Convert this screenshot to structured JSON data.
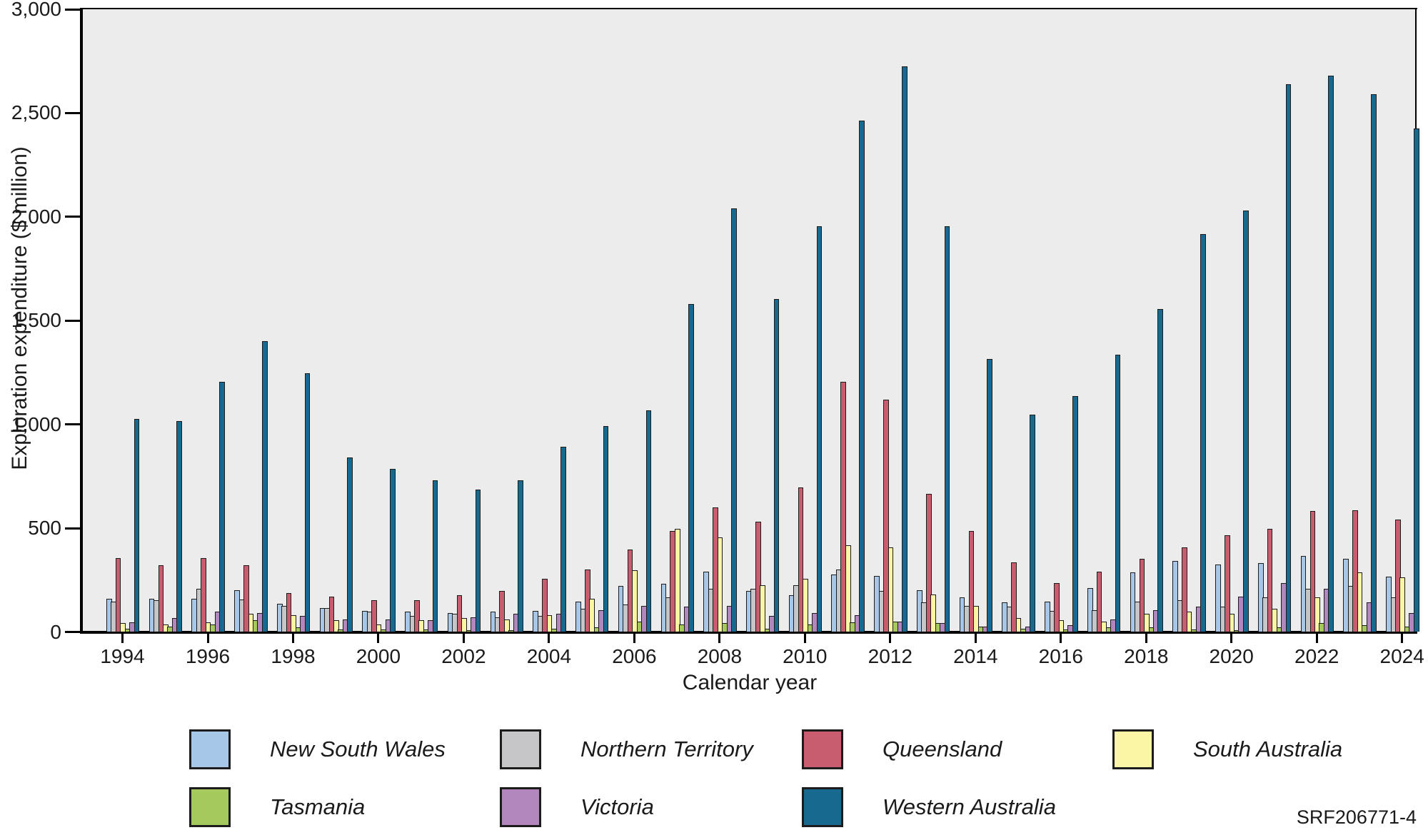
{
  "figure_code": "SRF206771-4",
  "colors": {
    "plot_background": "#ECECEC",
    "axis": "#000000",
    "bar_outline": "#1c1c1c"
  },
  "chart_data": {
    "type": "bar",
    "title": "",
    "xlabel": "Calendar year",
    "ylabel": "Exploration expenditure ($ million)",
    "ylim": [
      0,
      3000
    ],
    "grid": false,
    "legend_position": "bottom",
    "ytick_values": [
      0,
      500,
      1000,
      1500,
      2000,
      2500,
      3000
    ],
    "ytick_labels": [
      "0",
      "500",
      "1,000",
      "1,500",
      "2,000",
      "2,500",
      "3,000"
    ],
    "x": [
      1994,
      1995,
      1996,
      1997,
      1998,
      1999,
      2000,
      2001,
      2002,
      2003,
      2004,
      2005,
      2006,
      2007,
      2008,
      2009,
      2010,
      2011,
      2012,
      2013,
      2014,
      2015,
      2016,
      2017,
      2018,
      2019,
      2020,
      2021,
      2022,
      2023,
      2024
    ],
    "xtick_labels": [
      "1994",
      "1996",
      "1998",
      "2000",
      "2002",
      "2004",
      "2006",
      "2008",
      "2010",
      "2012",
      "2014",
      "2016",
      "2018",
      "2020",
      "2022",
      "2024"
    ],
    "series": [
      {
        "name": "New South Wales",
        "color": "#A6C7E8",
        "values": [
          160,
          160,
          160,
          200,
          135,
          115,
          100,
          95,
          90,
          95,
          100,
          145,
          220,
          230,
          290,
          195,
          175,
          275,
          270,
          200,
          165,
          140,
          145,
          210,
          285,
          340,
          325,
          330,
          365,
          350,
          265
        ]
      },
      {
        "name": "Northern Territory",
        "color": "#C6C6C8",
        "values": [
          145,
          150,
          205,
          155,
          125,
          115,
          95,
          75,
          85,
          70,
          75,
          110,
          130,
          165,
          205,
          205,
          225,
          300,
          195,
          140,
          125,
          120,
          100,
          105,
          145,
          150,
          120,
          165,
          205,
          220,
          165
        ]
      },
      {
        "name": "Queensland",
        "color": "#C75D6F",
        "values": [
          355,
          320,
          355,
          320,
          185,
          170,
          150,
          150,
          175,
          195,
          255,
          300,
          395,
          485,
          600,
          530,
          695,
          1205,
          1120,
          665,
          485,
          335,
          235,
          290,
          350,
          405,
          465,
          495,
          580,
          585,
          540
        ]
      },
      {
        "name": "South Australia",
        "color": "#FAF6A6",
        "values": [
          40,
          35,
          45,
          85,
          80,
          55,
          35,
          55,
          65,
          60,
          80,
          160,
          295,
          495,
          455,
          225,
          255,
          415,
          405,
          180,
          125,
          65,
          55,
          50,
          85,
          95,
          85,
          110,
          165,
          285,
          260
        ]
      },
      {
        "name": "Tasmania",
        "color": "#A5C95C",
        "values": [
          15,
          25,
          35,
          55,
          20,
          10,
          10,
          10,
          7,
          7,
          15,
          20,
          50,
          35,
          40,
          15,
          35,
          45,
          50,
          40,
          25,
          15,
          10,
          20,
          20,
          10,
          8,
          20,
          40,
          30,
          25
        ]
      },
      {
        "name": "Victoria",
        "color": "#B287BE",
        "values": [
          45,
          65,
          95,
          90,
          75,
          60,
          60,
          55,
          70,
          85,
          85,
          105,
          125,
          120,
          125,
          75,
          90,
          80,
          50,
          40,
          25,
          25,
          30,
          60,
          105,
          120,
          170,
          235,
          205,
          140,
          90
        ]
      },
      {
        "name": "Western Australia",
        "color": "#17698F",
        "values": [
          1025,
          1015,
          1205,
          1400,
          1245,
          840,
          785,
          730,
          685,
          730,
          890,
          990,
          1065,
          1580,
          2040,
          1605,
          1955,
          2465,
          2725,
          1955,
          1315,
          1045,
          1135,
          1335,
          1555,
          1915,
          2030,
          2640,
          2680,
          2590,
          2425
        ]
      }
    ]
  }
}
